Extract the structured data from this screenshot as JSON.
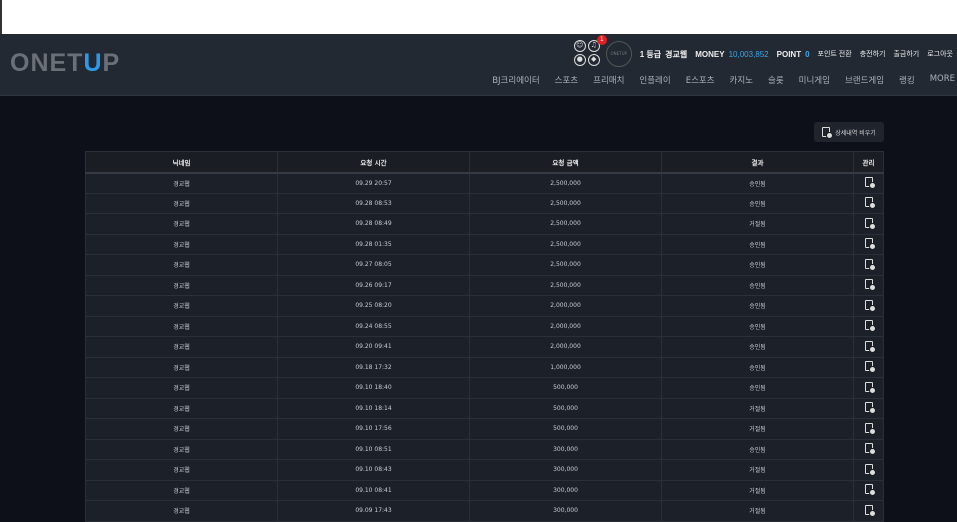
{
  "logo": {
    "text_a": "ONET",
    "text_b": "U",
    "text_c": "P",
    "colors": {
      "base": "#6b7078",
      "accent": "#2d9ae8"
    }
  },
  "header": {
    "notification_count": "1",
    "avatar_text": "ONETUP",
    "level": "1 등급",
    "username": "경교웹",
    "money_label": "MONEY",
    "money_value": "10,003,852",
    "point_label": "POINT",
    "point_value": "0",
    "links": [
      "포인트 전환",
      "충전하기",
      "출금하기",
      "로그아웃"
    ]
  },
  "nav": [
    "BJ크리에이터",
    "스포츠",
    "프리매치",
    "인플레이",
    "E스포츠",
    "카지노",
    "슬롯",
    "미니게임",
    "브랜드게임",
    "랭킹",
    "MORE"
  ],
  "clear_button": "상세내역 비우기",
  "table": {
    "headers": [
      "닉네임",
      "요청 시간",
      "요청 금액",
      "결과",
      "관리"
    ],
    "rows": [
      [
        "경교웹",
        "09.29 20:57",
        "2,500,000",
        "승인됨"
      ],
      [
        "경교웹",
        "09.28 08:53",
        "2,500,000",
        "승인됨"
      ],
      [
        "경교웹",
        "09.28 08:49",
        "2,500,000",
        "거절됨"
      ],
      [
        "경교웹",
        "09.28 01:35",
        "2,500,000",
        "승인됨"
      ],
      [
        "경교웹",
        "09.27 08:05",
        "2,500,000",
        "승인됨"
      ],
      [
        "경교웹",
        "09.26 09:17",
        "2,500,000",
        "승인됨"
      ],
      [
        "경교웹",
        "09.25 08:20",
        "2,000,000",
        "승인됨"
      ],
      [
        "경교웹",
        "09.24 08:55",
        "2,000,000",
        "승인됨"
      ],
      [
        "경교웹",
        "09.20 09:41",
        "2,000,000",
        "승인됨"
      ],
      [
        "경교웹",
        "09.18 17:32",
        "1,000,000",
        "승인됨"
      ],
      [
        "경교웹",
        "09.10 18:40",
        "500,000",
        "승인됨"
      ],
      [
        "경교웹",
        "09.10 18:14",
        "500,000",
        "거절됨"
      ],
      [
        "경교웹",
        "09.10 17:56",
        "500,000",
        "거절됨"
      ],
      [
        "경교웹",
        "09.10 08:51",
        "300,000",
        "승인됨"
      ],
      [
        "경교웹",
        "09.10 08:43",
        "300,000",
        "거절됨"
      ],
      [
        "경교웹",
        "09.10 08:41",
        "300,000",
        "거절됨"
      ],
      [
        "경교웹",
        "09.09 17:43",
        "300,000",
        "거절됨"
      ]
    ]
  }
}
